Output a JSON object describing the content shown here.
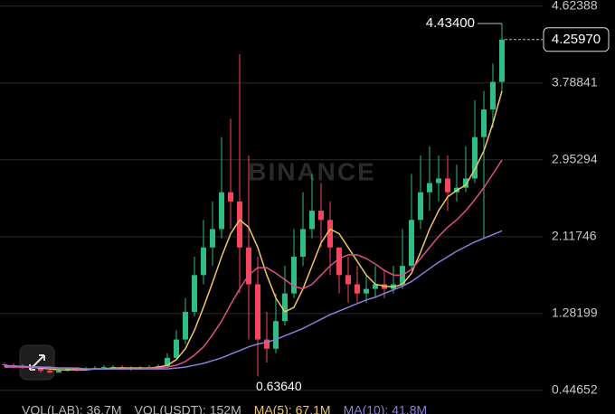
{
  "chart_data": {
    "type": "candlestick",
    "watermark": "BINANCE",
    "ylim": [
      0.19,
      4.69
    ],
    "yticks": [
      0.44652,
      1.28199,
      2.11746,
      2.95294,
      3.78841,
      4.62388
    ],
    "grid": true,
    "up_color": "#2ebd85",
    "down_color": "#f6465d",
    "open": [
      0.73,
      0.72,
      0.71,
      0.7,
      0.69,
      0.66,
      0.64,
      0.66,
      0.68,
      0.67,
      0.68,
      0.69,
      0.7,
      0.7,
      0.69,
      0.68,
      0.69,
      0.7,
      0.71,
      0.8,
      1.0,
      1.3,
      1.7,
      2.0,
      2.2,
      2.6,
      2.5,
      2.0,
      1.6,
      1.0,
      0.9,
      1.2,
      1.5,
      1.9,
      2.2,
      2.4,
      2.3,
      2.0,
      1.7,
      1.6,
      1.5,
      1.55,
      1.6,
      1.55,
      1.6,
      1.8,
      2.3,
      2.6,
      2.7,
      2.75,
      2.6,
      2.65,
      2.75,
      3.2,
      3.5,
      3.8
    ],
    "high": [
      0.75,
      0.74,
      0.73,
      0.72,
      0.71,
      0.68,
      0.68,
      0.7,
      0.7,
      0.7,
      0.71,
      0.72,
      0.72,
      0.72,
      0.71,
      0.71,
      0.72,
      0.73,
      0.85,
      1.1,
      1.45,
      1.9,
      2.3,
      2.5,
      3.2,
      3.4,
      4.1,
      3.0,
      1.9,
      1.3,
      1.5,
      1.8,
      2.2,
      2.6,
      2.8,
      2.7,
      2.5,
      2.0,
      1.9,
      1.8,
      1.7,
      1.8,
      1.75,
      1.8,
      2.2,
      2.8,
      3.0,
      3.1,
      3.0,
      3.0,
      2.9,
      3.1,
      3.6,
      3.7,
      4.0,
      4.434
    ],
    "low": [
      0.7,
      0.69,
      0.68,
      0.67,
      0.64,
      0.6364,
      0.64,
      0.65,
      0.65,
      0.66,
      0.67,
      0.68,
      0.68,
      0.67,
      0.66,
      0.67,
      0.68,
      0.69,
      0.7,
      0.78,
      0.95,
      1.25,
      1.6,
      1.8,
      2.1,
      2.2,
      1.5,
      1.0,
      0.6,
      0.75,
      0.85,
      1.15,
      1.45,
      1.8,
      2.1,
      2.0,
      1.7,
      1.5,
      1.4,
      1.4,
      1.4,
      1.45,
      1.45,
      1.5,
      1.55,
      1.75,
      2.2,
      2.4,
      2.5,
      2.4,
      2.5,
      2.6,
      2.7,
      2.1,
      3.3,
      3.7
    ],
    "close": [
      0.72,
      0.71,
      0.7,
      0.69,
      0.66,
      0.64,
      0.66,
      0.68,
      0.67,
      0.68,
      0.69,
      0.7,
      0.7,
      0.69,
      0.68,
      0.69,
      0.7,
      0.71,
      0.8,
      1.0,
      1.3,
      1.7,
      2.0,
      2.2,
      2.6,
      2.5,
      2.0,
      1.6,
      1.0,
      0.9,
      1.2,
      1.5,
      1.9,
      2.2,
      2.4,
      2.3,
      2.0,
      1.7,
      1.6,
      1.5,
      1.55,
      1.6,
      1.55,
      1.6,
      1.8,
      2.3,
      2.6,
      2.7,
      2.75,
      2.6,
      2.65,
      2.75,
      3.2,
      3.5,
      3.8,
      4.2597
    ],
    "series": [
      {
        "color": "#f0c75e",
        "values": [
          0.71,
          0.71,
          0.7,
          0.7,
          0.69,
          0.68,
          0.67,
          0.67,
          0.67,
          0.67,
          0.68,
          0.68,
          0.69,
          0.69,
          0.69,
          0.69,
          0.69,
          0.7,
          0.72,
          0.78,
          0.9,
          1.1,
          1.35,
          1.62,
          1.9,
          2.15,
          2.3,
          2.22,
          2.0,
          1.7,
          1.45,
          1.3,
          1.35,
          1.55,
          1.8,
          2.05,
          2.2,
          2.15,
          2.0,
          1.85,
          1.7,
          1.6,
          1.58,
          1.57,
          1.6,
          1.72,
          1.95,
          2.2,
          2.4,
          2.55,
          2.62,
          2.68,
          2.85,
          3.05,
          3.35,
          3.7
        ]
      },
      {
        "color": "#d9508c",
        "values": [
          0.7,
          0.7,
          0.7,
          0.7,
          0.7,
          0.69,
          0.69,
          0.69,
          0.68,
          0.68,
          0.68,
          0.68,
          0.68,
          0.68,
          0.68,
          0.68,
          0.69,
          0.69,
          0.7,
          0.72,
          0.76,
          0.83,
          0.92,
          1.05,
          1.2,
          1.38,
          1.55,
          1.7,
          1.78,
          1.78,
          1.72,
          1.65,
          1.58,
          1.55,
          1.6,
          1.7,
          1.8,
          1.88,
          1.92,
          1.92,
          1.88,
          1.82,
          1.75,
          1.7,
          1.7,
          1.76,
          1.88,
          2.0,
          2.12,
          2.22,
          2.3,
          2.4,
          2.52,
          2.65,
          2.8,
          2.95
        ]
      },
      {
        "color": "#8c7fd9",
        "values": [
          0.72,
          0.71,
          0.71,
          0.7,
          0.7,
          0.7,
          0.69,
          0.69,
          0.69,
          0.68,
          0.68,
          0.68,
          0.68,
          0.68,
          0.68,
          0.68,
          0.68,
          0.68,
          0.68,
          0.69,
          0.7,
          0.72,
          0.74,
          0.77,
          0.8,
          0.84,
          0.88,
          0.92,
          0.95,
          0.97,
          1.0,
          1.04,
          1.08,
          1.12,
          1.17,
          1.22,
          1.27,
          1.31,
          1.35,
          1.39,
          1.43,
          1.46,
          1.5,
          1.54,
          1.58,
          1.63,
          1.7,
          1.77,
          1.84,
          1.9,
          1.96,
          2.01,
          2.06,
          2.1,
          2.14,
          2.18
        ]
      }
    ],
    "annotations": {
      "high": "4.43400",
      "last": "4.25970",
      "low": "0.63640"
    },
    "volume_labels": [
      "VOL(LAB): 36.7M",
      "VOL(USDT): 152M",
      "MA(5): 67.1M",
      "MA(10): 41.8M"
    ]
  }
}
